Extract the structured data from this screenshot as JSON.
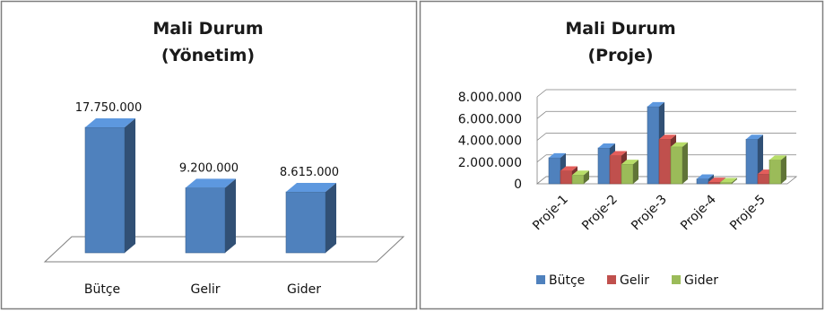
{
  "chart_data": [
    {
      "type": "bar",
      "title_lines": [
        "Mali Durum",
        "(Yönetim)"
      ],
      "categories": [
        "Bütçe",
        "Gelir",
        "Gider"
      ],
      "values": [
        17750000,
        9200000,
        8615000
      ],
      "data_labels": [
        "17.750.000",
        "9.200.000",
        "8.615.000"
      ],
      "color": "#4f81bd",
      "style": "3d-column",
      "legend": "none"
    },
    {
      "type": "bar",
      "title_lines": [
        "Mali Durum",
        "(Proje)"
      ],
      "categories": [
        "Proje-1",
        "Proje-2",
        "Proje-3",
        "Proje-4",
        "Proje-5"
      ],
      "series": [
        {
          "name": "Bütçe",
          "color": "#4f81bd",
          "values": [
            2400000,
            3300000,
            7100000,
            450000,
            4100000
          ]
        },
        {
          "name": "Gelir",
          "color": "#c0504d",
          "values": [
            1200000,
            2600000,
            4100000,
            150000,
            900000
          ]
        },
        {
          "name": "Gider",
          "color": "#9bbb59",
          "values": [
            800000,
            1800000,
            3400000,
            120000,
            2200000
          ]
        }
      ],
      "yticks": [
        "0",
        "2.000.000",
        "4.000.000",
        "6.000.000",
        "8.000.000"
      ],
      "ylim": [
        0,
        8000000
      ],
      "grid": true,
      "style": "3d-clustered-column",
      "legend": "bottom"
    }
  ]
}
